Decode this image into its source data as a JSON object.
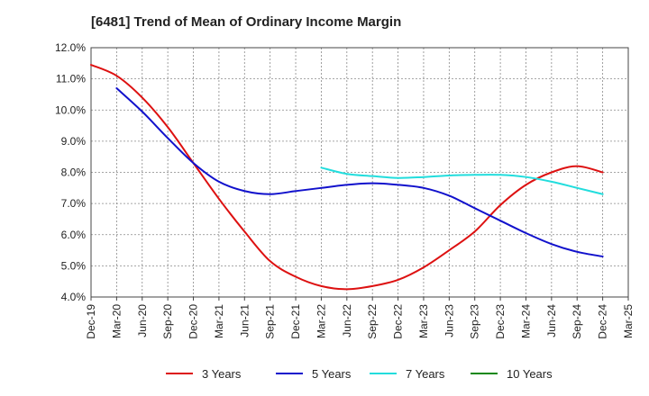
{
  "chart_data": {
    "type": "line",
    "title": "[6481]  Trend of Mean of Ordinary Income Margin",
    "xlabel": "",
    "ylabel": "",
    "ylim": [
      4.0,
      12.0
    ],
    "y_ticks": [
      "4.0%",
      "5.0%",
      "6.0%",
      "7.0%",
      "8.0%",
      "9.0%",
      "10.0%",
      "11.0%",
      "12.0%"
    ],
    "y_tick_values": [
      4,
      5,
      6,
      7,
      8,
      9,
      10,
      11,
      12
    ],
    "x_ticks": [
      "Dec-19",
      "Mar-20",
      "Jun-20",
      "Sep-20",
      "Dec-20",
      "Mar-21",
      "Jun-21",
      "Sep-21",
      "Dec-21",
      "Mar-22",
      "Jun-22",
      "Sep-22",
      "Dec-22",
      "Mar-23",
      "Jun-23",
      "Sep-23",
      "Dec-23",
      "Mar-24",
      "Jun-24",
      "Sep-24",
      "Dec-24",
      "Mar-25"
    ],
    "grid": true,
    "legend_position": "bottom",
    "series": [
      {
        "name": "3 Years",
        "color": "#dd1111",
        "x": [
          "Dec-19",
          "Mar-20",
          "Jun-20",
          "Sep-20",
          "Dec-20",
          "Mar-21",
          "Jun-21",
          "Sep-21",
          "Dec-21",
          "Mar-22",
          "Jun-22",
          "Sep-22",
          "Dec-22",
          "Mar-23",
          "Jun-23",
          "Sep-23",
          "Dec-23",
          "Mar-24",
          "Jun-24",
          "Sep-24",
          "Dec-24"
        ],
        "values": [
          11.45,
          11.1,
          10.4,
          9.45,
          8.3,
          7.15,
          6.1,
          5.15,
          4.65,
          4.35,
          4.25,
          4.35,
          4.55,
          4.95,
          5.5,
          6.1,
          6.95,
          7.6,
          8.0,
          8.2,
          8.0
        ]
      },
      {
        "name": "5 Years",
        "color": "#1111cc",
        "x": [
          "Mar-20",
          "Jun-20",
          "Sep-20",
          "Dec-20",
          "Mar-21",
          "Jun-21",
          "Sep-21",
          "Dec-21",
          "Mar-22",
          "Jun-22",
          "Sep-22",
          "Dec-22",
          "Mar-23",
          "Jun-23",
          "Sep-23",
          "Dec-23",
          "Mar-24",
          "Jun-24",
          "Sep-24",
          "Dec-24"
        ],
        "values": [
          10.7,
          9.95,
          9.1,
          8.3,
          7.7,
          7.4,
          7.3,
          7.4,
          7.5,
          7.6,
          7.65,
          7.6,
          7.5,
          7.25,
          6.85,
          6.45,
          6.05,
          5.7,
          5.45,
          5.3
        ]
      },
      {
        "name": "7 Years",
        "color": "#22dddd",
        "x": [
          "Mar-22",
          "Jun-22",
          "Sep-22",
          "Dec-22",
          "Mar-23",
          "Jun-23",
          "Sep-23",
          "Dec-23",
          "Mar-24",
          "Jun-24",
          "Sep-24",
          "Dec-24"
        ],
        "values": [
          8.15,
          7.95,
          7.88,
          7.82,
          7.85,
          7.9,
          7.92,
          7.92,
          7.85,
          7.7,
          7.5,
          7.3
        ]
      },
      {
        "name": "10 Years",
        "color": "#118811",
        "x": [],
        "values": []
      }
    ]
  }
}
